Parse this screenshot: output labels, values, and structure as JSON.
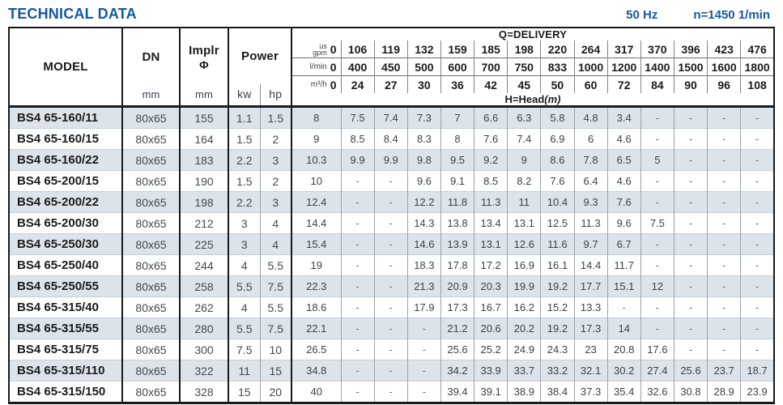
{
  "page": {
    "title": "TECHNICAL DATA",
    "frequency": "50 Hz",
    "speed": "n=1450 1/min"
  },
  "colors": {
    "accent_blue": "#15599f",
    "row_shade": "#dce3ea",
    "border_dark": "#1a1a1a"
  },
  "table": {
    "headers": {
      "model": "MODEL",
      "dn": "DN",
      "dn_unit": "mm",
      "implr_line1": "Implr",
      "implr_line2": "Φ",
      "implr_unit": "mm",
      "power": "Power",
      "power_kw": "kw",
      "power_hp": "hp",
      "delivery": "Q=DELIVERY",
      "head": "H=Head",
      "head_unit": "(m)"
    },
    "delivery_rows": [
      {
        "id": "us-gpm",
        "unit": "us\ngpm",
        "values": [
          "0",
          "106",
          "119",
          "132",
          "159",
          "185",
          "198",
          "220",
          "264",
          "317",
          "370",
          "396",
          "423",
          "476"
        ]
      },
      {
        "id": "l-min",
        "unit": "l/min",
        "values": [
          "0",
          "400",
          "450",
          "500",
          "600",
          "700",
          "750",
          "833",
          "1000",
          "1200",
          "1400",
          "1500",
          "1600",
          "1800"
        ]
      },
      {
        "id": "m3-h",
        "unit": "m³/h",
        "values": [
          "0",
          "24",
          "27",
          "30",
          "36",
          "42",
          "45",
          "50",
          "60",
          "72",
          "84",
          "90",
          "96",
          "108"
        ]
      }
    ],
    "rows": [
      {
        "model": "BS4 65-160/11",
        "dn": "80x65",
        "implr": "155",
        "kw": "1.1",
        "hp": "1.5",
        "head": [
          "8",
          "7.5",
          "7.4",
          "7.3",
          "7",
          "6.6",
          "6.3",
          "5.8",
          "4.8",
          "3.4",
          "-",
          "-",
          "-",
          "-"
        ]
      },
      {
        "model": "BS4 65-160/15",
        "dn": "80x65",
        "implr": "164",
        "kw": "1.5",
        "hp": "2",
        "head": [
          "9",
          "8.5",
          "8.4",
          "8.3",
          "8",
          "7.6",
          "7.4",
          "6.9",
          "6",
          "4.6",
          "-",
          "-",
          "-",
          "-"
        ]
      },
      {
        "model": "BS4 65-160/22",
        "dn": "80x65",
        "implr": "183",
        "kw": "2.2",
        "hp": "3",
        "head": [
          "10.3",
          "9.9",
          "9.9",
          "9.8",
          "9.5",
          "9.2",
          "9",
          "8.6",
          "7.8",
          "6.5",
          "5",
          "-",
          "-",
          "-"
        ]
      },
      {
        "model": "BS4 65-200/15",
        "dn": "80x65",
        "implr": "190",
        "kw": "1.5",
        "hp": "2",
        "head": [
          "10",
          "-",
          "-",
          "9.6",
          "9.1",
          "8.5",
          "8.2",
          "7.6",
          "6.4",
          "4.6",
          "-",
          "-",
          "-",
          "-"
        ]
      },
      {
        "model": "BS4 65-200/22",
        "dn": "80x65",
        "implr": "198",
        "kw": "2.2",
        "hp": "3",
        "head": [
          "12.4",
          "-",
          "-",
          "12.2",
          "11.8",
          "11.3",
          "11",
          "10.4",
          "9.3",
          "7.6",
          "-",
          "-",
          "-",
          "-"
        ]
      },
      {
        "model": "BS4 65-200/30",
        "dn": "80x65",
        "implr": "212",
        "kw": "3",
        "hp": "4",
        "head": [
          "14.4",
          "-",
          "-",
          "14.3",
          "13.8",
          "13.4",
          "13.1",
          "12.5",
          "11.3",
          "9.6",
          "7.5",
          "-",
          "-",
          "-"
        ]
      },
      {
        "model": "BS4 65-250/30",
        "dn": "80x65",
        "implr": "225",
        "kw": "3",
        "hp": "4",
        "head": [
          "15.4",
          "-",
          "-",
          "14.6",
          "13.9",
          "13.1",
          "12.6",
          "11.6",
          "9.7",
          "6.7",
          "-",
          "-",
          "-",
          "-"
        ]
      },
      {
        "model": "BS4 65-250/40",
        "dn": "80x65",
        "implr": "244",
        "kw": "4",
        "hp": "5.5",
        "head": [
          "19",
          "-",
          "-",
          "18.3",
          "17.8",
          "17.2",
          "16.9",
          "16.1",
          "14.4",
          "11.7",
          "-",
          "-",
          "-",
          "-"
        ]
      },
      {
        "model": "BS4 65-250/55",
        "dn": "80x65",
        "implr": "258",
        "kw": "5.5",
        "hp": "7.5",
        "head": [
          "22.3",
          "-",
          "-",
          "21.3",
          "20.9",
          "20.3",
          "19.9",
          "19.2",
          "17.7",
          "15.1",
          "12",
          "-",
          "-",
          "-"
        ]
      },
      {
        "model": "BS4 65-315/40",
        "dn": "80x65",
        "implr": "262",
        "kw": "4",
        "hp": "5.5",
        "head": [
          "18.6",
          "-",
          "-",
          "17.9",
          "17.3",
          "16.7",
          "16.2",
          "15.2",
          "13.3",
          "-",
          "-",
          "-",
          "-",
          "-"
        ]
      },
      {
        "model": "BS4 65-315/55",
        "dn": "80x65",
        "implr": "280",
        "kw": "5.5",
        "hp": "7.5",
        "head": [
          "22.1",
          "-",
          "-",
          "-",
          "21.2",
          "20.6",
          "20.2",
          "19.2",
          "17.3",
          "14",
          "-",
          "-",
          "-",
          "-"
        ]
      },
      {
        "model": "BS4 65-315/75",
        "dn": "80x65",
        "implr": "300",
        "kw": "7.5",
        "hp": "10",
        "head": [
          "26.5",
          "-",
          "-",
          "-",
          "25.6",
          "25.2",
          "24.9",
          "24.3",
          "23",
          "20.8",
          "17.6",
          "-",
          "-",
          "-"
        ]
      },
      {
        "model": "BS4 65-315/110",
        "dn": "80x65",
        "implr": "322",
        "kw": "11",
        "hp": "15",
        "head": [
          "34.8",
          "-",
          "-",
          "-",
          "34.2",
          "33.9",
          "33.7",
          "33.2",
          "32.1",
          "30.2",
          "27.4",
          "25.6",
          "23.7",
          "18.7"
        ]
      },
      {
        "model": "BS4 65-315/150",
        "dn": "80x65",
        "implr": "328",
        "kw": "15",
        "hp": "20",
        "head": [
          "40",
          "-",
          "-",
          "-",
          "39.4",
          "39.1",
          "38.9",
          "38.4",
          "37.3",
          "35.4",
          "32.6",
          "30.8",
          "28.9",
          "23.9"
        ]
      }
    ]
  }
}
